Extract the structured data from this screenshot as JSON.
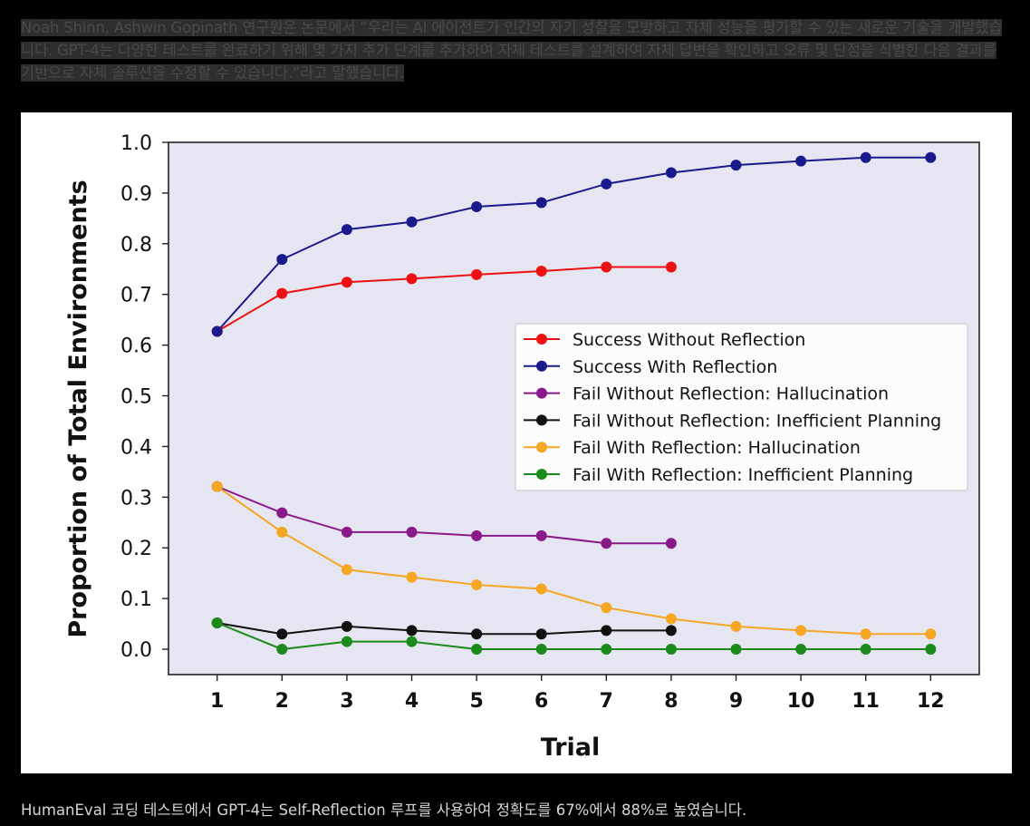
{
  "article": {
    "quote_text": "Noah Shinn, Ashwin Gopinath 연구원은 논문에서 “우리는 AI 에이전트가 인간의 자기 성찰을 모방하고 자체 성능을 평가할 수 있는 새로운 기술을 개발했습니다. GPT-4는 다양한 테스트를 완료하기 위해 몇 가지 추가 단계를 추가하여 자체 테스트를 설계하여 자체 답변을 확인하고 오류 및 단점을 식별한 다음 결과를 기반으로 자체 솔루션을 수정할 수 있습니다.”라고 말했습니다.",
    "caption_text": "HumanEval 코딩 테스트에서 GPT-4는 Self-Reflection 루프를 사용하여 정확도를 67%에서 88%로 높였습니다."
  },
  "chart_data": {
    "type": "line",
    "title": "",
    "xlabel": "Trial",
    "ylabel": "Proportion of Total Environments",
    "x_ticks": [
      1,
      2,
      3,
      4,
      5,
      6,
      7,
      8,
      9,
      10,
      11,
      12
    ],
    "y_ticks": [
      "0.0",
      "0.1",
      "0.2",
      "0.3",
      "0.4",
      "0.5",
      "0.6",
      "0.7",
      "0.8",
      "0.9",
      "1.0"
    ],
    "xlim": [
      0.25,
      12.75
    ],
    "ylim": [
      -0.05,
      1.0
    ],
    "grid": false,
    "legend_position": "center-right",
    "background_color": "#e6e6f2",
    "series": [
      {
        "name": "Success Without Reflection",
        "color": "#ee1111",
        "x": [
          1,
          2,
          3,
          4,
          5,
          6,
          7,
          8
        ],
        "y": [
          0.627,
          0.702,
          0.724,
          0.731,
          0.739,
          0.746,
          0.754,
          0.754
        ]
      },
      {
        "name": "Success With Reflection",
        "color": "#1a1a8c",
        "x": [
          1,
          2,
          3,
          4,
          5,
          6,
          7,
          8,
          9,
          10,
          11,
          12
        ],
        "y": [
          0.627,
          0.769,
          0.828,
          0.843,
          0.873,
          0.881,
          0.918,
          0.94,
          0.955,
          0.963,
          0.97,
          0.97
        ]
      },
      {
        "name": "Fail Without Reflection: Hallucination",
        "color": "#8a1a8a",
        "x": [
          1,
          2,
          3,
          4,
          5,
          6,
          7,
          8
        ],
        "y": [
          0.321,
          0.269,
          0.231,
          0.231,
          0.224,
          0.224,
          0.209,
          0.209
        ]
      },
      {
        "name": "Fail Without Reflection: Inefficient Planning",
        "color": "#111111",
        "x": [
          1,
          2,
          3,
          4,
          5,
          6,
          7,
          8
        ],
        "y": [
          0.052,
          0.03,
          0.045,
          0.037,
          0.03,
          0.03,
          0.037,
          0.037
        ]
      },
      {
        "name": "Fail With Reflection: Hallucination",
        "color": "#f5a623",
        "x": [
          1,
          2,
          3,
          4,
          5,
          6,
          7,
          8,
          9,
          10,
          11,
          12
        ],
        "y": [
          0.321,
          0.231,
          0.157,
          0.142,
          0.127,
          0.119,
          0.082,
          0.06,
          0.045,
          0.037,
          0.03,
          0.03
        ]
      },
      {
        "name": "Fail With Reflection: Inefficient Planning",
        "color": "#1a8a1a",
        "x": [
          1,
          2,
          3,
          4,
          5,
          6,
          7,
          8,
          9,
          10,
          11,
          12
        ],
        "y": [
          0.052,
          0.0,
          0.015,
          0.015,
          0.0,
          0.0,
          0.0,
          0.0,
          0.0,
          0.0,
          0.0,
          0.0
        ]
      }
    ]
  }
}
